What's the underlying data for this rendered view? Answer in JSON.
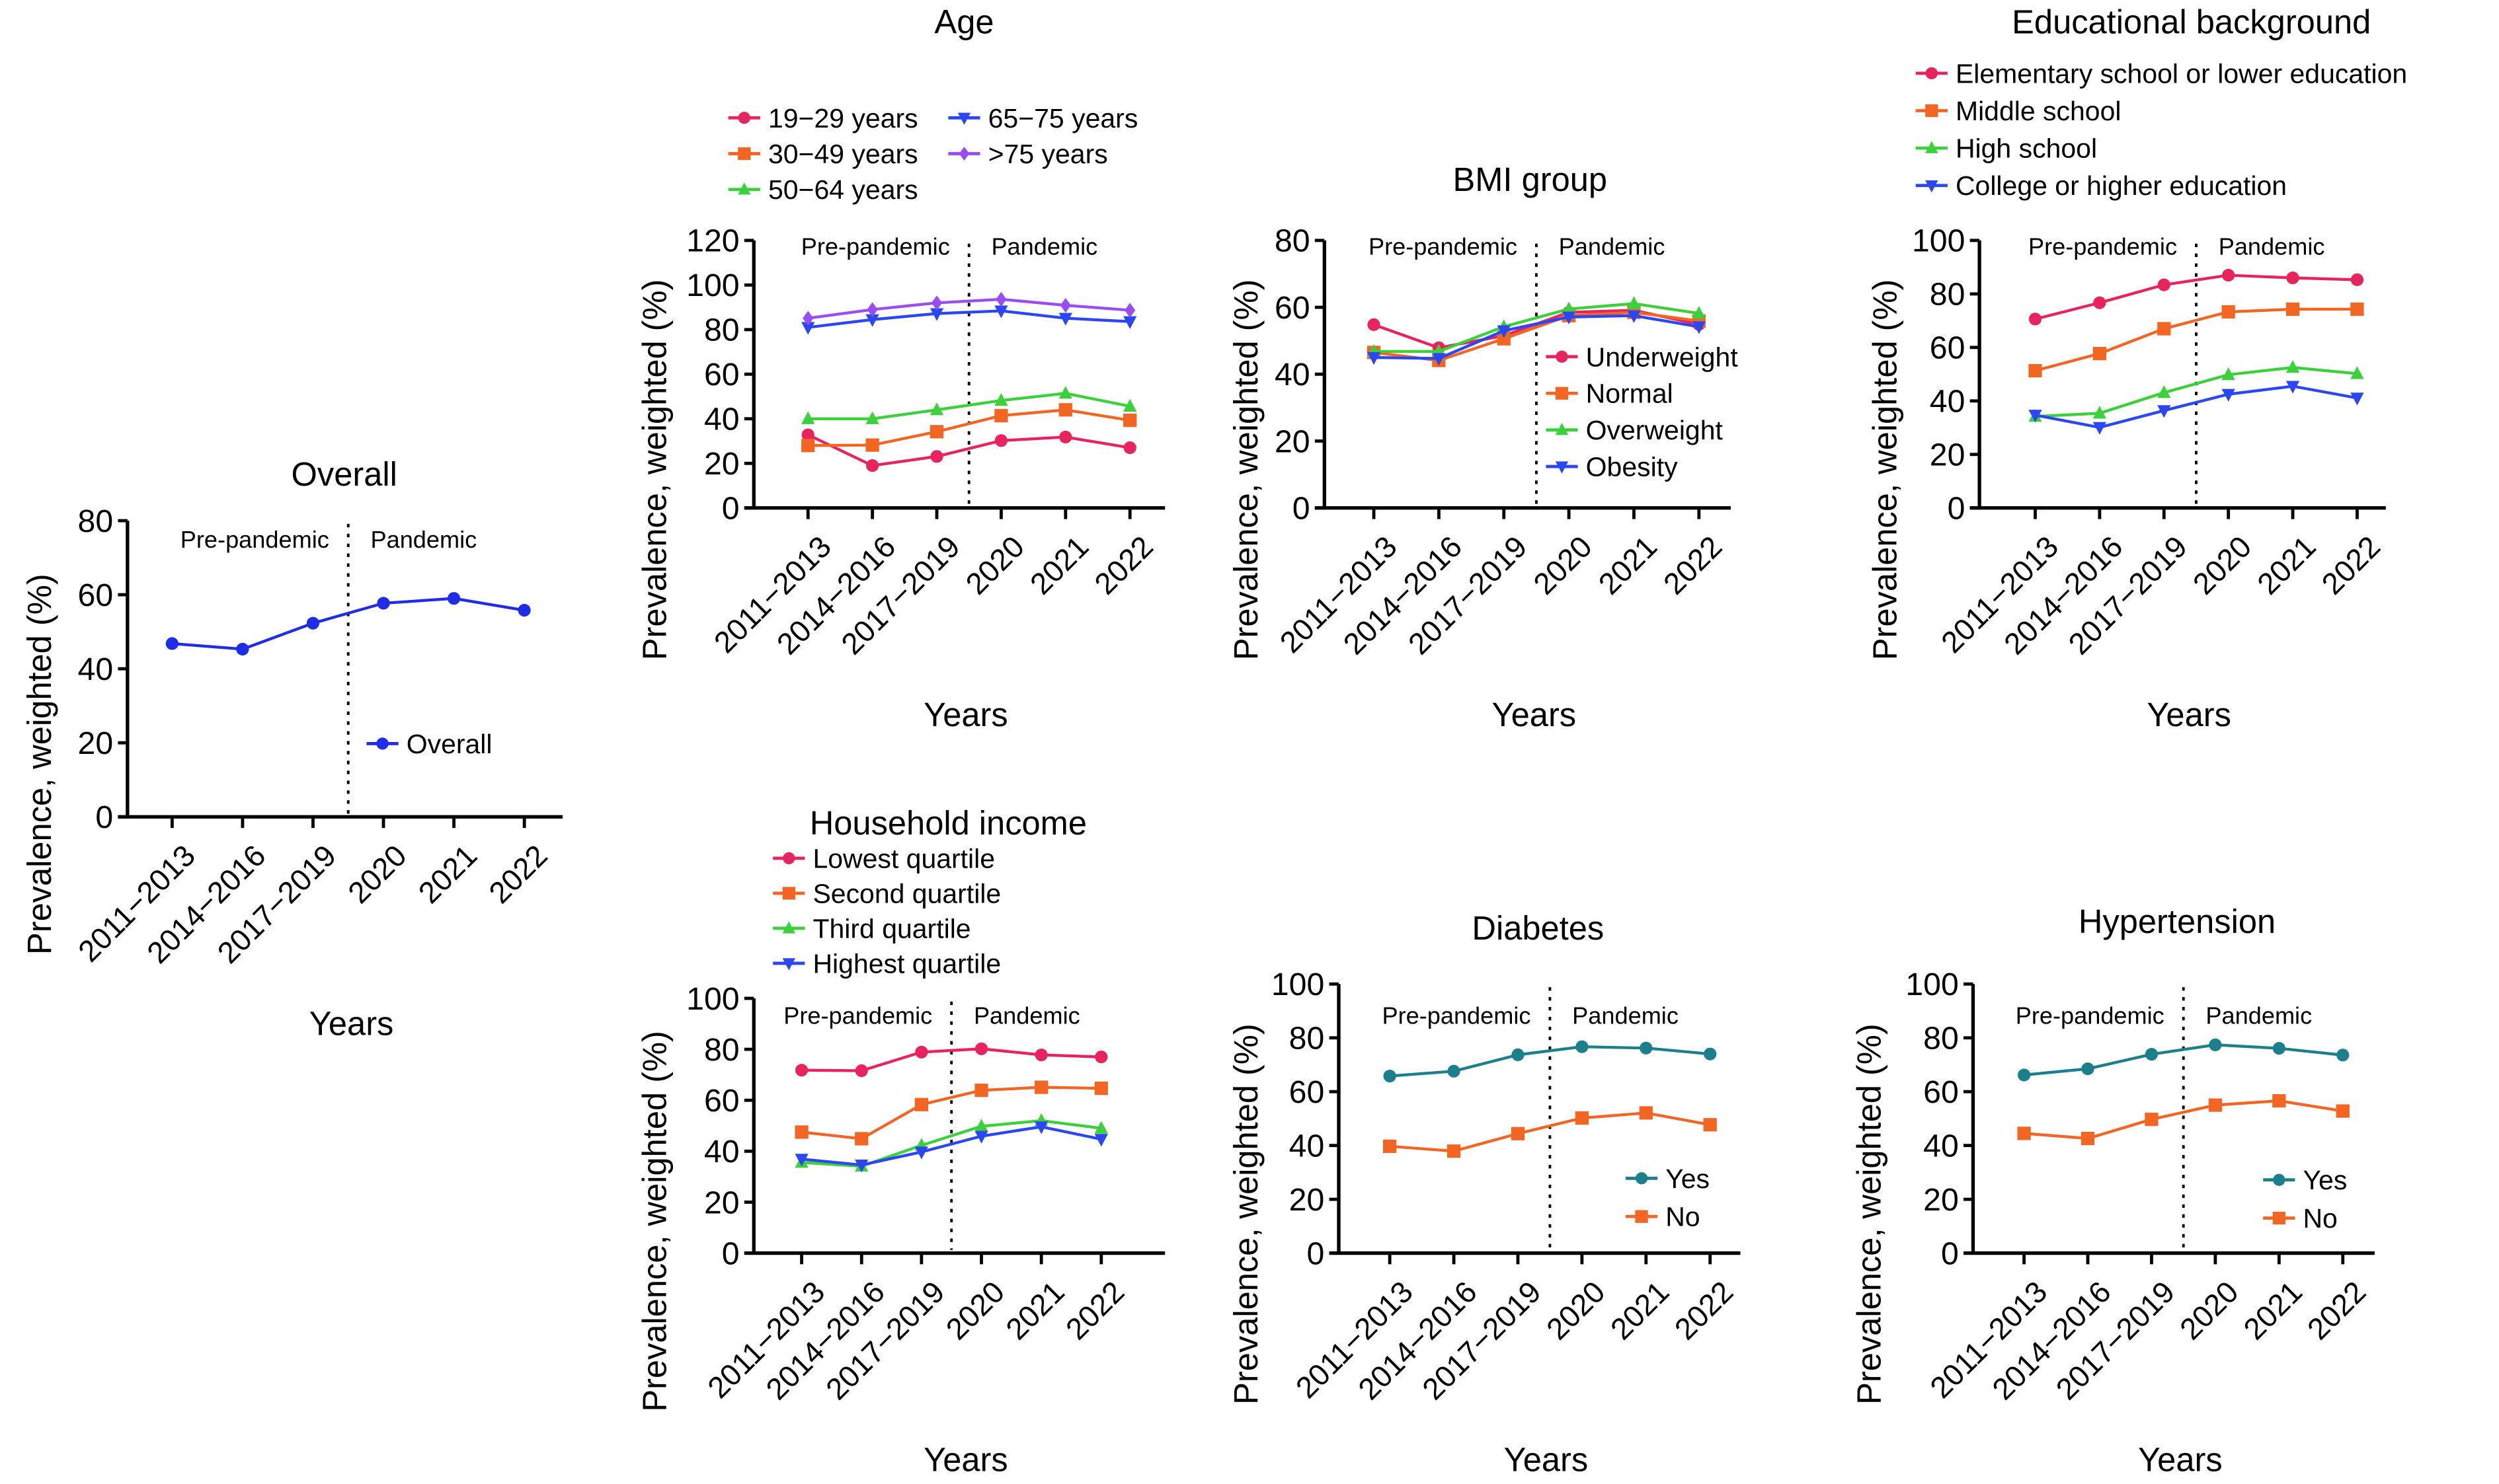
{
  "figure": {
    "shared": {
      "x_axis_title": "Years",
      "y_axis_title": "Prevalence, weighted (%)",
      "period_labels": {
        "pre": "Pre-pandemic",
        "post": "Pandemic"
      }
    }
  },
  "chart_data": [
    {
      "id": "overall",
      "type": "line",
      "title": "Overall",
      "xlabel": "Years",
      "ylabel": "Prevalence, weighted (%)",
      "categories": [
        "2011−2013",
        "2014−2016",
        "2017−2019",
        "2020",
        "2021",
        "2022"
      ],
      "ylim": [
        0,
        80
      ],
      "yticks": [
        0,
        20,
        40,
        60,
        80
      ],
      "grid": false,
      "legend_position": "lower-right",
      "annotations": [
        "Pre-pandemic",
        "Pandemic"
      ],
      "divider_between": [
        "2017−2019",
        "2020"
      ],
      "series": [
        {
          "name": "Overall",
          "color": "#1f2de6",
          "marker": "circle",
          "values": [
            46.8,
            45.3,
            52.3,
            57.7,
            59.0,
            55.8
          ]
        }
      ]
    },
    {
      "id": "age",
      "type": "line",
      "title": "Age",
      "xlabel": "Years",
      "ylabel": "Prevalence, weighted (%)",
      "categories": [
        "2011−2013",
        "2014−2016",
        "2017−2019",
        "2020",
        "2021",
        "2022"
      ],
      "ylim": [
        0,
        120
      ],
      "yticks": [
        0,
        20,
        40,
        60,
        80,
        100,
        120
      ],
      "grid": false,
      "legend_position": "top (above plot, two columns)",
      "annotations": [
        "Pre-pandemic",
        "Pandemic"
      ],
      "divider_between": [
        "2017−2019",
        "2020"
      ],
      "series": [
        {
          "name": "19−29 years",
          "color": "#e8245f",
          "marker": "circle",
          "values": [
            32.8,
            19.0,
            23.1,
            30.2,
            31.8,
            27.0
          ]
        },
        {
          "name": "30−49 years",
          "color": "#f26522",
          "marker": "square",
          "values": [
            28.0,
            28.2,
            34.2,
            41.4,
            44.0,
            39.3
          ]
        },
        {
          "name": "50−64 years",
          "color": "#3ad13a",
          "marker": "triangle-up",
          "values": [
            40.0,
            40.0,
            44.0,
            48.2,
            51.4,
            45.6
          ]
        },
        {
          "name": "65−75 years",
          "color": "#2b47f2",
          "marker": "triangle-down",
          "values": [
            81.0,
            84.5,
            87.2,
            88.4,
            85.1,
            83.6
          ]
        },
        {
          "name": ">75 years",
          "color": "#9a4df2",
          "marker": "diamond",
          "values": [
            85.1,
            89.0,
            92.0,
            93.6,
            90.9,
            88.7
          ]
        }
      ]
    },
    {
      "id": "bmi",
      "type": "line",
      "title": "BMI group",
      "xlabel": "Years",
      "ylabel": "Prevalence, weighted (%)",
      "categories": [
        "2011−2013",
        "2014−2016",
        "2017−2019",
        "2020",
        "2021",
        "2022"
      ],
      "ylim": [
        0,
        80
      ],
      "yticks": [
        0,
        20,
        40,
        60,
        80
      ],
      "grid": false,
      "legend_position": "lower-right",
      "annotations": [
        "Pre-pandemic",
        "Pandemic"
      ],
      "divider_between": [
        "2017−2019",
        "2020"
      ],
      "series": [
        {
          "name": "Underweight",
          "color": "#e8245f",
          "marker": "circle",
          "values": [
            54.8,
            47.9,
            51.5,
            58.5,
            59.1,
            54.9
          ]
        },
        {
          "name": "Normal",
          "color": "#f26522",
          "marker": "square",
          "values": [
            46.5,
            44.1,
            50.6,
            57.5,
            58.5,
            55.9
          ]
        },
        {
          "name": "Overweight",
          "color": "#3ad13a",
          "marker": "triangle-up",
          "values": [
            46.8,
            46.8,
            54.2,
            59.5,
            61.1,
            58.2
          ]
        },
        {
          "name": "Obesity",
          "color": "#2b47f2",
          "marker": "triangle-down",
          "values": [
            45.0,
            44.7,
            53.0,
            57.1,
            57.5,
            54.2
          ]
        }
      ]
    },
    {
      "id": "education",
      "type": "line",
      "title": "Educational background",
      "xlabel": "Years",
      "ylabel": "Prevalence, weighted (%)",
      "categories": [
        "2011−2013",
        "2014−2016",
        "2017−2019",
        "2020",
        "2021",
        "2022"
      ],
      "ylim": [
        0,
        100
      ],
      "yticks": [
        0,
        20,
        40,
        60,
        80,
        100
      ],
      "grid": false,
      "legend_position": "top (above plot)",
      "annotations": [
        "Pre-pandemic",
        "Pandemic"
      ],
      "divider_between": [
        "2017−2019",
        "2020"
      ],
      "series": [
        {
          "name": "Elementary school or lower education",
          "color": "#e8245f",
          "marker": "circle",
          "values": [
            70.6,
            76.7,
            83.4,
            87.0,
            86.0,
            85.3
          ]
        },
        {
          "name": "Middle school",
          "color": "#f26522",
          "marker": "square",
          "values": [
            51.3,
            57.7,
            67.0,
            73.3,
            74.3,
            74.3
          ]
        },
        {
          "name": "High school",
          "color": "#3ad13a",
          "marker": "triangle-up",
          "values": [
            34.2,
            35.4,
            43.1,
            49.8,
            52.5,
            50.2
          ]
        },
        {
          "name": "College or higher education",
          "color": "#2b47f2",
          "marker": "triangle-down",
          "values": [
            34.7,
            30.1,
            36.4,
            42.5,
            45.5,
            41.1
          ]
        }
      ]
    },
    {
      "id": "income",
      "type": "line",
      "title": "Household income",
      "xlabel": "Years",
      "ylabel": "Prevalence, weighted (%)",
      "categories": [
        "2011−2013",
        "2014−2016",
        "2017−2019",
        "2020",
        "2021",
        "2022"
      ],
      "ylim": [
        0,
        100
      ],
      "yticks": [
        0,
        20,
        40,
        60,
        80,
        100
      ],
      "grid": false,
      "legend_position": "top (above plot)",
      "annotations": [
        "Pre-pandemic",
        "Pandemic"
      ],
      "divider_between": [
        "2017−2019",
        "2020"
      ],
      "series": [
        {
          "name": "Lowest quartile",
          "color": "#e8245f",
          "marker": "circle",
          "values": [
            71.8,
            71.6,
            78.9,
            80.2,
            77.8,
            77.0
          ]
        },
        {
          "name": "Second quartile",
          "color": "#f26522",
          "marker": "square",
          "values": [
            47.5,
            44.9,
            58.3,
            63.9,
            65.1,
            64.7
          ]
        },
        {
          "name": "Third quartile",
          "color": "#3ad13a",
          "marker": "triangle-up",
          "values": [
            35.6,
            34.1,
            42.3,
            49.8,
            52.0,
            49.0
          ]
        },
        {
          "name": "Highest quartile",
          "color": "#2b47f2",
          "marker": "triangle-down",
          "values": [
            36.9,
            34.6,
            39.7,
            45.9,
            49.6,
            44.7
          ]
        }
      ]
    },
    {
      "id": "diabetes",
      "type": "line",
      "title": "Diabetes",
      "xlabel": "Years",
      "ylabel": "Prevalence, weighted (%)",
      "categories": [
        "2011−2013",
        "2014−2016",
        "2017−2019",
        "2020",
        "2021",
        "2022"
      ],
      "ylim": [
        0,
        100
      ],
      "yticks": [
        0,
        20,
        40,
        60,
        80,
        100
      ],
      "grid": false,
      "legend_position": "lower-right",
      "annotations": [
        "Pre-pandemic",
        "Pandemic"
      ],
      "divider_between": [
        "2017−2019",
        "2020"
      ],
      "series": [
        {
          "name": "Yes",
          "color": "#1b7f8c",
          "marker": "circle",
          "values": [
            65.8,
            67.6,
            73.7,
            76.7,
            76.2,
            74.0
          ]
        },
        {
          "name": "No",
          "color": "#f26522",
          "marker": "square",
          "values": [
            39.7,
            37.9,
            44.4,
            50.2,
            52.1,
            47.7
          ]
        }
      ]
    },
    {
      "id": "hypertension",
      "type": "line",
      "title": "Hypertension",
      "xlabel": "Years",
      "ylabel": "Prevalence, weighted (%)",
      "categories": [
        "2011−2013",
        "2014−2016",
        "2017−2019",
        "2020",
        "2021",
        "2022"
      ],
      "ylim": [
        0,
        100
      ],
      "yticks": [
        0,
        20,
        40,
        60,
        80,
        100
      ],
      "grid": false,
      "legend_position": "lower-right",
      "annotations": [
        "Pre-pandemic",
        "Pandemic"
      ],
      "divider_between": [
        "2017−2019",
        "2020"
      ],
      "series": [
        {
          "name": "Yes",
          "color": "#1b7f8c",
          "marker": "circle",
          "values": [
            66.2,
            68.5,
            73.9,
            77.4,
            76.1,
            73.6
          ]
        },
        {
          "name": "No",
          "color": "#f26522",
          "marker": "square",
          "values": [
            44.5,
            42.6,
            49.7,
            55.0,
            56.6,
            52.8
          ]
        }
      ]
    }
  ]
}
